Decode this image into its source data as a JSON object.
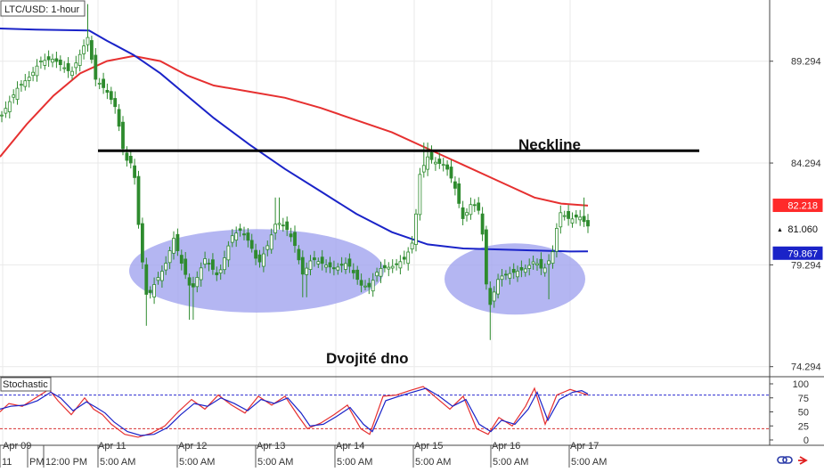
{
  "chart_data": {
    "type": "candlestick",
    "title": "LTC/USD: 1-hour",
    "price_axis": {
      "ticks": [
        89.294,
        84.294,
        79.294,
        74.294
      ],
      "range": [
        73.8,
        92.3
      ]
    },
    "price_tags": [
      {
        "value": 82.218,
        "color": "#ff2a2a",
        "text_color": "#ffffff"
      },
      {
        "value": 81.06,
        "color": "#ffffff",
        "text_color": "#111111",
        "marker": "▲"
      },
      {
        "value": 79.867,
        "color": "#1a23c8",
        "text_color": "#ffffff"
      }
    ],
    "moving_averages": [
      {
        "color": "#e63030",
        "points": [
          [
            0,
            84.6
          ],
          [
            30,
            86.2
          ],
          [
            60,
            87.6
          ],
          [
            90,
            88.7
          ],
          [
            120,
            89.3
          ],
          [
            150,
            89.55
          ],
          [
            180,
            89.3
          ],
          [
            210,
            88.6
          ],
          [
            240,
            88.1
          ],
          [
            280,
            87.8
          ],
          [
            320,
            87.5
          ],
          [
            360,
            87.0
          ],
          [
            400,
            86.4
          ],
          [
            440,
            85.8
          ],
          [
            480,
            85.0
          ],
          [
            520,
            84.2
          ],
          [
            560,
            83.4
          ],
          [
            600,
            82.6
          ],
          [
            630,
            82.3
          ],
          [
            660,
            82.2
          ]
        ]
      },
      {
        "color": "#1a23c8",
        "points": [
          [
            0,
            90.9
          ],
          [
            40,
            90.85
          ],
          [
            100,
            90.8
          ],
          [
            120,
            90.3
          ],
          [
            150,
            89.6
          ],
          [
            180,
            88.7
          ],
          [
            210,
            87.6
          ],
          [
            240,
            86.5
          ],
          [
            280,
            85.2
          ],
          [
            320,
            84.0
          ],
          [
            360,
            82.9
          ],
          [
            400,
            81.8
          ],
          [
            440,
            80.9
          ],
          [
            480,
            80.3
          ],
          [
            520,
            80.1
          ],
          [
            560,
            80.05
          ],
          [
            600,
            80.0
          ],
          [
            640,
            79.95
          ],
          [
            660,
            79.96
          ]
        ]
      }
    ],
    "candles": {
      "anchors": [
        [
          0,
          86.5
        ],
        [
          20,
          88.0
        ],
        [
          35,
          88.6
        ],
        [
          45,
          89.3
        ],
        [
          60,
          89.4
        ],
        [
          80,
          88.7
        ],
        [
          100,
          90.6
        ],
        [
          105,
          88.5
        ],
        [
          110,
          88.3
        ],
        [
          120,
          87.8
        ],
        [
          130,
          87.0
        ],
        [
          140,
          84.5
        ],
        [
          150,
          84.2
        ],
        [
          155,
          81.5
        ],
        [
          160,
          79.4
        ],
        [
          165,
          77.6
        ],
        [
          175,
          78.5
        ],
        [
          185,
          79.2
        ],
        [
          195,
          80.6
        ],
        [
          205,
          79.2
        ],
        [
          215,
          78.0
        ],
        [
          230,
          79.6
        ],
        [
          245,
          78.7
        ],
        [
          260,
          80.7
        ],
        [
          270,
          81.0
        ],
        [
          280,
          80.4
        ],
        [
          290,
          79.3
        ],
        [
          300,
          80.2
        ],
        [
          310,
          81.4
        ],
        [
          320,
          81.2
        ],
        [
          330,
          80.4
        ],
        [
          340,
          78.8
        ],
        [
          350,
          79.6
        ],
        [
          360,
          79.4
        ],
        [
          375,
          79.1
        ],
        [
          390,
          79.4
        ],
        [
          405,
          78.3
        ],
        [
          415,
          78.2
        ],
        [
          425,
          79.1
        ],
        [
          440,
          79.2
        ],
        [
          455,
          79.6
        ],
        [
          465,
          80.6
        ],
        [
          470,
          83.6
        ],
        [
          480,
          84.6
        ],
        [
          490,
          84.3
        ],
        [
          500,
          84.2
        ],
        [
          510,
          83.2
        ],
        [
          520,
          81.5
        ],
        [
          530,
          82.4
        ],
        [
          540,
          81.8
        ],
        [
          545,
          78.6
        ],
        [
          550,
          77.3
        ],
        [
          560,
          78.7
        ],
        [
          575,
          78.9
        ],
        [
          590,
          79.1
        ],
        [
          600,
          79.5
        ],
        [
          610,
          79.0
        ],
        [
          620,
          79.8
        ],
        [
          628,
          81.9
        ],
        [
          640,
          81.5
        ],
        [
          650,
          81.7
        ],
        [
          660,
          81.2
        ]
      ],
      "count": 151,
      "wick_pad": 0.35,
      "low_spikes": [
        [
          164,
          76.3
        ],
        [
          215,
          76.6
        ],
        [
          342,
          77.7
        ],
        [
          549,
          75.6
        ],
        [
          617,
          77.6
        ]
      ],
      "high_spikes": [
        [
          100,
          92.1
        ],
        [
          311,
          82.6
        ],
        [
          478,
          85.3
        ],
        [
          655,
          82.6
        ]
      ],
      "color": "#2e8b2e",
      "bull_fill": "#ffffff"
    },
    "annotations": {
      "neckline": {
        "label": "Neckline",
        "price": 84.9,
        "x_start": 110,
        "x_end": 785
      },
      "pattern": {
        "label": "Dvojité dno",
        "zones": [
          {
            "cx": 288,
            "cy": 79.0,
            "rx": 143,
            "ry": 2.05
          },
          {
            "cx": 578,
            "cy": 78.6,
            "rx": 79,
            "ry": 1.75
          }
        ],
        "fill": "#9fa2ee"
      }
    },
    "stochastic": {
      "label": "Stochastic",
      "ticks": [
        100,
        75,
        50,
        25,
        0
      ],
      "levels": [
        80,
        20
      ],
      "k": [
        [
          0,
          50
        ],
        [
          10,
          65
        ],
        [
          25,
          60
        ],
        [
          40,
          75
        ],
        [
          55,
          90
        ],
        [
          65,
          70
        ],
        [
          80,
          45
        ],
        [
          95,
          75
        ],
        [
          105,
          55
        ],
        [
          115,
          45
        ],
        [
          125,
          28
        ],
        [
          140,
          10
        ],
        [
          155,
          5
        ],
        [
          170,
          12
        ],
        [
          185,
          25
        ],
        [
          200,
          50
        ],
        [
          215,
          72
        ],
        [
          230,
          55
        ],
        [
          245,
          80
        ],
        [
          260,
          62
        ],
        [
          275,
          48
        ],
        [
          290,
          78
        ],
        [
          305,
          62
        ],
        [
          320,
          78
        ],
        [
          335,
          42
        ],
        [
          345,
          20
        ],
        [
          360,
          30
        ],
        [
          375,
          45
        ],
        [
          390,
          62
        ],
        [
          405,
          20
        ],
        [
          415,
          10
        ],
        [
          430,
          78
        ],
        [
          445,
          80
        ],
        [
          460,
          88
        ],
        [
          475,
          95
        ],
        [
          490,
          75
        ],
        [
          505,
          55
        ],
        [
          520,
          78
        ],
        [
          535,
          20
        ],
        [
          548,
          10
        ],
        [
          560,
          40
        ],
        [
          575,
          25
        ],
        [
          590,
          60
        ],
        [
          600,
          92
        ],
        [
          612,
          28
        ],
        [
          625,
          80
        ],
        [
          640,
          90
        ],
        [
          650,
          85
        ],
        [
          660,
          80
        ]
      ],
      "d": [
        [
          0,
          55
        ],
        [
          12,
          60
        ],
        [
          28,
          62
        ],
        [
          42,
          70
        ],
        [
          57,
          85
        ],
        [
          68,
          75
        ],
        [
          82,
          52
        ],
        [
          97,
          68
        ],
        [
          108,
          58
        ],
        [
          118,
          48
        ],
        [
          128,
          32
        ],
        [
          143,
          15
        ],
        [
          158,
          8
        ],
        [
          173,
          10
        ],
        [
          188,
          22
        ],
        [
          203,
          45
        ],
        [
          218,
          65
        ],
        [
          233,
          60
        ],
        [
          248,
          75
        ],
        [
          263,
          65
        ],
        [
          278,
          52
        ],
        [
          293,
          72
        ],
        [
          308,
          65
        ],
        [
          323,
          75
        ],
        [
          338,
          48
        ],
        [
          348,
          25
        ],
        [
          363,
          28
        ],
        [
          378,
          42
        ],
        [
          393,
          58
        ],
        [
          408,
          28
        ],
        [
          418,
          15
        ],
        [
          433,
          70
        ],
        [
          448,
          78
        ],
        [
          463,
          85
        ],
        [
          478,
          92
        ],
        [
          493,
          78
        ],
        [
          508,
          60
        ],
        [
          523,
          72
        ],
        [
          538,
          28
        ],
        [
          551,
          15
        ],
        [
          563,
          35
        ],
        [
          578,
          28
        ],
        [
          593,
          55
        ],
        [
          603,
          85
        ],
        [
          615,
          35
        ],
        [
          628,
          72
        ],
        [
          643,
          85
        ],
        [
          653,
          88
        ],
        [
          660,
          82
        ]
      ],
      "k_color": "#e63030",
      "d_color": "#1a23c8"
    },
    "time_axis": {
      "labels": [
        {
          "text": "Apr 09",
          "x": 3
        },
        {
          "text": "Apr 11",
          "x": 110
        },
        {
          "text": "Apr 12",
          "x": 200
        },
        {
          "text": "Apr 13",
          "x": 288
        },
        {
          "text": "Apr 14",
          "x": 377
        },
        {
          "text": "Apr 15",
          "x": 465
        },
        {
          "text": "Apr 16",
          "x": 552
        },
        {
          "text": "Apr 17",
          "x": 640
        }
      ],
      "sublabels": [
        {
          "text": "11",
          "x": 2
        },
        {
          "text": "PM",
          "x": 33
        },
        {
          "text": "12:00 PM",
          "x": 51
        },
        {
          "text": "5:00 AM",
          "x": 112
        },
        {
          "text": "5:00 AM",
          "x": 201
        },
        {
          "text": "5:00 AM",
          "x": 289
        },
        {
          "text": "5:00 AM",
          "x": 378
        },
        {
          "text": "5:00 AM",
          "x": 466
        },
        {
          "text": "5:00 AM",
          "x": 553
        },
        {
          "text": "5:00 AM",
          "x": 641
        }
      ]
    }
  }
}
